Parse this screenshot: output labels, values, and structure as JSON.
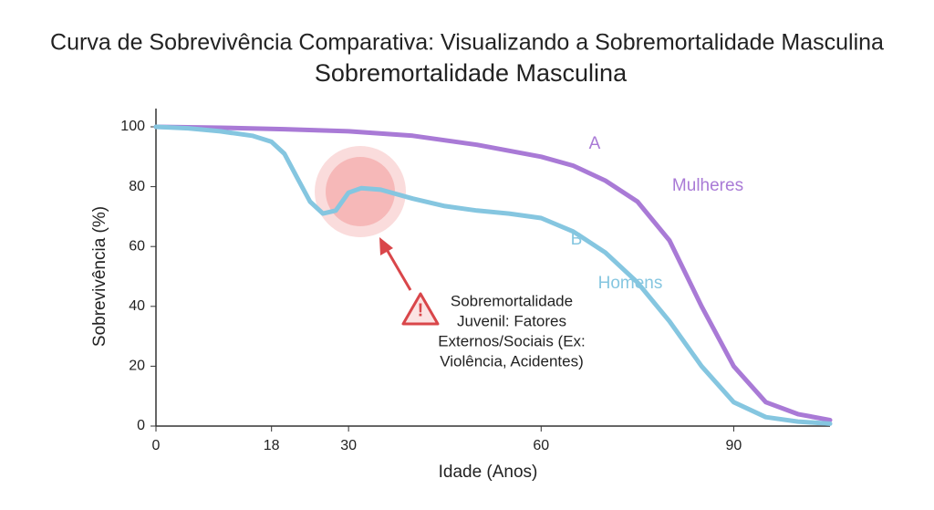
{
  "chart_data": {
    "type": "line",
    "title": "Curva de Sobrevivência Comparativa: Visualizando a Sobremortalidade Masculina",
    "subtitle": "Sobremortalidade Masculina",
    "x_label": "Idade (Anos)",
    "y_label": "Sobrevivência (%)",
    "xlim": [
      0,
      105
    ],
    "xticks": [
      0,
      18,
      30,
      60,
      90
    ],
    "ylim": [
      0,
      100
    ],
    "yticks": [
      0,
      20,
      40,
      60,
      80,
      100
    ],
    "series": [
      {
        "name": "Mulheres",
        "tag": "A",
        "color": "#a97ad6",
        "x": [
          0,
          10,
          20,
          30,
          40,
          50,
          60,
          65,
          70,
          75,
          80,
          85,
          90,
          95,
          100,
          105
        ],
        "values": [
          100,
          99.7,
          99.2,
          98.5,
          97,
          94,
          90,
          87,
          82,
          75,
          62,
          40,
          20,
          8,
          4,
          2
        ]
      },
      {
        "name": "Homens",
        "tag": "B",
        "color": "#85c6e0",
        "x": [
          0,
          5,
          10,
          15,
          18,
          20,
          22,
          24,
          26,
          28,
          30,
          32,
          35,
          40,
          45,
          50,
          55,
          60,
          65,
          70,
          75,
          80,
          85,
          90,
          95,
          100,
          105
        ],
        "values": [
          100,
          99.5,
          98.5,
          97,
          95,
          91,
          83,
          75,
          71,
          72,
          78,
          79.5,
          79,
          76,
          73.5,
          72,
          71,
          69.5,
          65,
          58,
          48,
          35,
          20,
          8,
          3,
          1.5,
          0.8
        ]
      }
    ],
    "annotation": [
      "Sobremortalidade",
      "Juvenil: Fatores",
      "Externos/Sociais (Ex:",
      "Violência, Acidentes)"
    ]
  }
}
